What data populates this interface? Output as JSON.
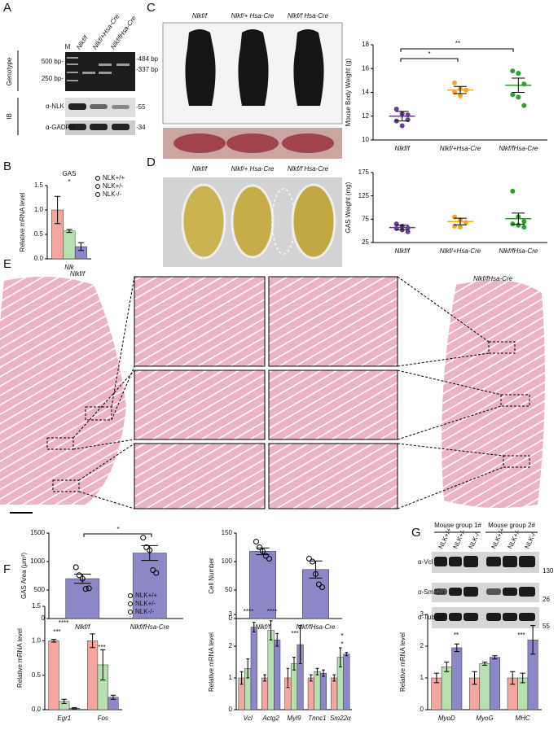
{
  "panels": {
    "letters": [
      "A",
      "B",
      "C",
      "D",
      "E",
      "F",
      "G"
    ],
    "A": {
      "lanes": [
        "M",
        "Nlkf/f",
        "Nlkf/+Hsa-Cre",
        "Nlkf/fHsa-Cre"
      ],
      "genotype": "Genotype",
      "markers_left": [
        "500 bp-",
        "250 bp-"
      ],
      "markers_right": [
        "-484 bp",
        "-337 bp"
      ],
      "ib": "IB",
      "antibodies": [
        "α-NLK",
        "α-GADPH"
      ],
      "sizes": [
        "-55",
        "-34"
      ]
    },
    "C": {
      "labels": [
        "Nlkf/f",
        "Nlkf/+ Hsa-Cre",
        "Nlkf/f Hsa-Cre"
      ]
    },
    "D": {
      "labels": [
        "Nlkf/f",
        "Nlkf/+ Hsa-Cre",
        "Nlkf/f Hsa-Cre"
      ]
    },
    "E": {
      "labels": [
        "Nlkf/f",
        "Nlkf/fHsa-Cre"
      ]
    },
    "G": {
      "groups": [
        "Mouse group 1#",
        "Mouse group 2#"
      ],
      "lanes": [
        "NLK+/+",
        "NLK+/-",
        "NLK-/-",
        "NLK+/+",
        "NLK+/-",
        "NLK-/-"
      ],
      "antibodies": [
        "α-Vcl",
        "α-Sm22α",
        "α-Tubulin"
      ],
      "sizes": [
        "130",
        "26",
        "55"
      ]
    }
  },
  "chart_data": [
    {
      "type": "bar",
      "title": "GAS",
      "ylabel": "Relative mRNA level",
      "categories": [
        "Nlk"
      ],
      "series": [
        {
          "name": "NLK+/+",
          "color": "#f4a6a0",
          "values": [
            1.0
          ],
          "errors": [
            0.28
          ]
        },
        {
          "name": "NLK+/-",
          "color": "#b7e0b0",
          "values": [
            0.57
          ],
          "errors": [
            0.03
          ]
        },
        {
          "name": "NLK-/-",
          "color": "#8c88c8",
          "values": [
            0.25
          ],
          "errors": [
            0.08
          ]
        }
      ],
      "ylim": [
        0,
        1.5
      ],
      "yticks": [
        {
          "value": 0,
          "label": "0.0"
        },
        {
          "value": 0.5,
          "label": "0.5"
        },
        {
          "value": 1,
          "label": "1.0"
        },
        {
          "value": 1.5,
          "label": "1.5"
        }
      ],
      "annotations": [
        "*"
      ],
      "legend": "top-right"
    },
    {
      "type": "dot",
      "ylabel": "Mouse Body Weight (g)",
      "categories": [
        "Nlkf/f",
        "Nlkf/+Hsa-Cre",
        "Nlkf/fHsa-Cre"
      ],
      "colors": [
        "#6a3d9a",
        "#f5a623",
        "#2ca02c"
      ],
      "values": [
        12.0,
        14.2,
        14.6
      ],
      "errors": [
        0.4,
        0.3,
        0.6
      ],
      "points": [
        [
          12.6,
          12.2,
          11.7,
          11.6,
          11.2,
          12.1
        ],
        [
          14.8,
          14.3,
          14.2,
          14.0,
          13.7
        ],
        [
          15.8,
          15.6,
          14.7,
          13.8,
          13.6,
          12.9
        ]
      ],
      "ylim": [
        10,
        18
      ],
      "yticks": [
        10,
        12,
        14,
        16,
        18
      ],
      "annotations": [
        "*",
        "**"
      ]
    },
    {
      "type": "dot",
      "ylabel": "GAS Weight (mg)",
      "categories": [
        "Nlkf/f",
        "Nlkf/+Hsa-Cre",
        "Nlkf/fHsa-Cre"
      ],
      "colors": [
        "#6a3d9a",
        "#f5a623",
        "#2ca02c"
      ],
      "values": [
        57,
        70,
        76
      ],
      "errors": [
        5,
        7,
        12
      ],
      "points": [
        [
          65,
          60,
          56,
          55,
          52,
          48
        ],
        [
          80,
          73,
          68,
          60,
          58
        ],
        [
          135,
          80,
          70,
          65,
          62,
          58
        ]
      ],
      "ylim": [
        25,
        175
      ],
      "yticks": [
        25,
        75,
        125,
        175
      ]
    },
    {
      "type": "bar",
      "ylabel": "GAS Area (μm²)",
      "categories": [
        "Nlkf/f",
        "Nlkf/fHsa-Cre"
      ],
      "series": [
        {
          "color": "#8c88c8",
          "values": [
            700,
            1150
          ],
          "errors": [
            80,
            130
          ],
          "points": [
            [
              900,
              760,
              700,
              520,
              530
            ],
            [
              1420,
              1250,
              1200,
              850,
              800
            ]
          ]
        }
      ],
      "ylim": [
        0,
        1500
      ],
      "yticks": [
        0,
        500,
        1000,
        1500
      ],
      "annotations": [
        "*"
      ]
    },
    {
      "type": "bar",
      "ylabel": "Cell Number",
      "categories": [
        "Nlkf/f",
        "Nlkf/fHsa-Cre"
      ],
      "series": [
        {
          "color": "#8c88c8",
          "values": [
            118,
            86
          ],
          "errors": [
            6,
            15
          ],
          "points": [
            [
              135,
              125,
              118,
              110,
              105
            ],
            [
              105,
              100,
              78,
              60,
              55
            ]
          ]
        }
      ],
      "ylim": [
        0,
        150
      ],
      "yticks": [
        0,
        50,
        100,
        150
      ]
    },
    {
      "type": "bar",
      "ylabel": "Relative mRNA level",
      "categories": [
        "Egr1",
        "Fos"
      ],
      "series": [
        {
          "name": "NLK+/+",
          "color": "#f4a6a0",
          "values": [
            1.0,
            1.0
          ],
          "errors": [
            0.02,
            0.1
          ]
        },
        {
          "name": "NLK+/-",
          "color": "#b7e0b0",
          "values": [
            0.12,
            0.65
          ],
          "errors": [
            0.03,
            0.22
          ]
        },
        {
          "name": "NLK-/-",
          "color": "#8c88c8",
          "values": [
            0.02,
            0.18
          ],
          "errors": [
            0.01,
            0.03
          ]
        }
      ],
      "ylim": [
        0,
        1.5
      ],
      "yticks": [
        {
          "value": 0,
          "label": "0.0"
        },
        {
          "value": 0.5,
          "label": "0.5"
        },
        {
          "value": 1,
          "label": "1.0"
        },
        {
          "value": 1.5,
          "label": "1.5"
        }
      ],
      "annotations": [
        "***",
        "****",
        "***"
      ],
      "legend": "top-right"
    },
    {
      "type": "bar",
      "ylabel": "Relative mRNA level",
      "categories": [
        "Vcl",
        "Actg2",
        "Myl9",
        "Tnnc1",
        "Sm22α"
      ],
      "series": [
        {
          "name": "NLK+/+",
          "color": "#f4a6a0",
          "values": [
            1.0,
            1.0,
            1.0,
            1.0,
            1.0
          ],
          "errors": [
            0.2,
            0.1,
            0.3,
            0.1,
            0.1
          ]
        },
        {
          "name": "NLK+/-",
          "color": "#b7e0b0",
          "values": [
            1.3,
            2.5,
            1.45,
            1.2,
            1.65
          ],
          "errors": [
            0.3,
            0.3,
            0.2,
            0.1,
            0.3
          ]
        },
        {
          "name": "NLK-/-",
          "color": "#8c88c8",
          "values": [
            2.6,
            2.2,
            2.05,
            1.15,
            1.75
          ],
          "errors": [
            0.15,
            0.2,
            0.6,
            0.1,
            0.05
          ]
        }
      ],
      "ylim": [
        0,
        3
      ],
      "yticks": [
        0,
        1,
        2,
        3
      ],
      "annotations": [
        "****",
        "****",
        "***",
        "*",
        "*"
      ]
    },
    {
      "type": "bar",
      "ylabel": "Relative mRNA level",
      "categories": [
        "MyoD",
        "MyoG",
        "MHC"
      ],
      "series": [
        {
          "name": "NLK+/+",
          "color": "#f4a6a0",
          "values": [
            1.0,
            1.0,
            1.0
          ],
          "errors": [
            0.15,
            0.2,
            0.2
          ]
        },
        {
          "name": "NLK+/-",
          "color": "#b7e0b0",
          "values": [
            1.35,
            1.45,
            1.0
          ],
          "errors": [
            0.15,
            0.05,
            0.15
          ]
        },
        {
          "name": "NLK-/-",
          "color": "#8c88c8",
          "values": [
            1.95,
            1.65,
            2.2
          ],
          "errors": [
            0.12,
            0.05,
            0.45
          ]
        }
      ],
      "ylim": [
        0,
        3
      ],
      "yticks": [
        0,
        1,
        2,
        3
      ],
      "annotations": [
        "**",
        "***"
      ]
    }
  ]
}
